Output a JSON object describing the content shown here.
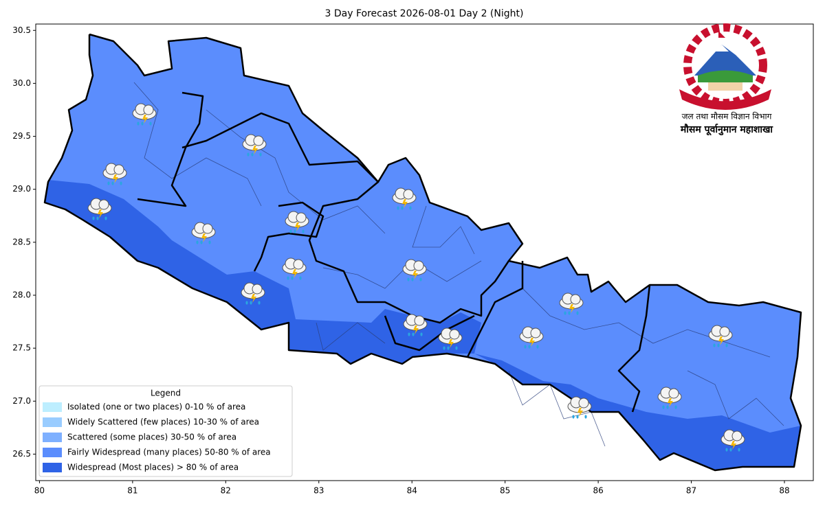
{
  "map": {
    "title": "3 Day Forecast 2026-08-01 Day 2 (Night)",
    "xlim": [
      79.96,
      88.31
    ],
    "ylim": [
      26.25,
      30.56
    ],
    "xticks": [
      80,
      81,
      82,
      83,
      84,
      85,
      86,
      87,
      88
    ],
    "yticks": [
      {
        "value": 26.5,
        "label": "26.5"
      },
      {
        "value": 27,
        "label": "27.0"
      },
      {
        "value": 27.5,
        "label": "27.5"
      },
      {
        "value": 28,
        "label": "28.0"
      },
      {
        "value": 28.5,
        "label": "28.5"
      },
      {
        "value": 29,
        "label": "29.0"
      },
      {
        "value": 29.5,
        "label": "29.5"
      },
      {
        "value": 30,
        "label": "30.0"
      },
      {
        "value": 30.5,
        "label": "30.5"
      }
    ],
    "legend": {
      "title": "Legend",
      "items": [
        {
          "label": "Isolated (one or two places)  0-10 % of area",
          "color": "#bdeeff"
        },
        {
          "label": "Widely Scattered (few places)  10-30 % of area",
          "color": "#99ccff"
        },
        {
          "label": "Scattered (some places)  30-50 % of area",
          "color": "#7eb0ff"
        },
        {
          "label": "Fairly Widespread (many places)  50-80 % of area",
          "color": "#5b8dfd"
        },
        {
          "label": "Widespread (Most places) > 80 % of area",
          "color": "#2f63e6"
        }
      ]
    },
    "logo": {
      "line1": "जल तथा मौसम विज्ञान विभाग",
      "line2": "मौसम पूर्वानुमान महाशाखा"
    }
  }
}
